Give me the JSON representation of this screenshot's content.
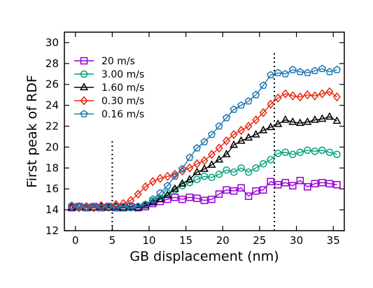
{
  "chart_data": {
    "type": "line",
    "title": "",
    "xlabel": "GB displacement (nm)",
    "ylabel": "First peak of RDF",
    "xlim": [
      -1.5,
      36.5
    ],
    "ylim": [
      12,
      31
    ],
    "xticks": [
      0,
      5,
      10,
      15,
      20,
      25,
      30,
      35
    ],
    "yticks": [
      12,
      14,
      16,
      18,
      20,
      22,
      24,
      26,
      28,
      30
    ],
    "grid": false,
    "legend_position": "top-left",
    "vlines": [
      {
        "x": 5,
        "y_from": 12,
        "y_to": 20.8
      },
      {
        "x": 27,
        "y_from": 12,
        "y_to": 29.2
      }
    ],
    "series": [
      {
        "name": "20 m/s",
        "color": "#9400d3",
        "marker": "square",
        "x": [
          -0.5,
          0.5,
          1.5,
          2.5,
          3.5,
          4.5,
          5.5,
          6.5,
          7.5,
          8.5,
          9.5,
          10.5,
          11.5,
          12.5,
          13.5,
          14.5,
          15.5,
          16.5,
          17.5,
          18.5,
          19.5,
          20.5,
          21.5,
          22.5,
          23.5,
          24.5,
          25.5,
          26.5,
          27.5,
          28.5,
          29.5,
          30.5,
          31.5,
          32.5,
          33.5,
          34.5,
          35.5
        ],
        "y": [
          14.2,
          14.3,
          14.2,
          14.3,
          14.2,
          14.3,
          14.2,
          14.2,
          14.3,
          14.2,
          14.3,
          14.6,
          14.8,
          15.0,
          15.2,
          15.0,
          15.2,
          15.1,
          14.9,
          15.0,
          15.5,
          15.9,
          15.8,
          16.1,
          15.3,
          15.8,
          15.9,
          16.7,
          16.4,
          16.6,
          16.3,
          16.8,
          16.2,
          16.5,
          16.6,
          16.5,
          16.4
        ]
      },
      {
        "name": "3.00 m/s",
        "color": "#00a07a",
        "marker": "circle",
        "x": [
          -0.5,
          0.5,
          1.5,
          2.5,
          3.5,
          4.5,
          5.5,
          6.5,
          7.5,
          8.5,
          9.5,
          10.5,
          11.5,
          12.5,
          13.5,
          14.5,
          15.5,
          16.5,
          17.5,
          18.5,
          19.5,
          20.5,
          21.5,
          22.5,
          23.5,
          24.5,
          25.5,
          26.5,
          27.5,
          28.5,
          29.5,
          30.5,
          31.5,
          32.5,
          33.5,
          34.5,
          35.5
        ],
        "y": [
          14.3,
          14.2,
          14.3,
          14.2,
          14.3,
          14.2,
          14.3,
          14.2,
          14.2,
          14.3,
          14.5,
          14.8,
          15.1,
          15.6,
          15.9,
          16.3,
          16.6,
          16.9,
          17.2,
          17.1,
          17.4,
          17.8,
          17.6,
          18.0,
          17.6,
          18.0,
          18.4,
          18.8,
          19.4,
          19.5,
          19.3,
          19.5,
          19.7,
          19.6,
          19.7,
          19.5,
          19.3
        ]
      },
      {
        "name": "1.60 m/s",
        "color": "#000000",
        "marker": "triangle",
        "x": [
          -0.5,
          0.5,
          1.5,
          2.5,
          3.5,
          4.5,
          5.5,
          6.5,
          7.5,
          8.5,
          9.5,
          10.5,
          11.5,
          12.5,
          13.5,
          14.5,
          15.5,
          16.5,
          17.5,
          18.5,
          19.5,
          20.5,
          21.5,
          22.5,
          23.5,
          24.5,
          25.5,
          26.5,
          27.5,
          28.5,
          29.5,
          30.5,
          31.5,
          32.5,
          33.5,
          34.5,
          35.5
        ],
        "y": [
          14.2,
          14.3,
          14.2,
          14.2,
          14.3,
          14.2,
          14.3,
          14.2,
          14.3,
          14.2,
          14.4,
          14.7,
          15.0,
          15.4,
          16.0,
          16.5,
          16.9,
          17.6,
          17.9,
          18.3,
          18.8,
          19.3,
          20.2,
          20.6,
          20.9,
          21.2,
          21.6,
          21.9,
          22.2,
          22.6,
          22.4,
          22.3,
          22.4,
          22.6,
          22.7,
          22.9,
          22.5
        ]
      },
      {
        "name": "0.30 m/s",
        "color": "#e8250e",
        "marker": "diamond",
        "x": [
          -0.5,
          0.5,
          1.5,
          2.5,
          3.5,
          4.5,
          5.5,
          6.5,
          7.5,
          8.5,
          9.5,
          10.5,
          11.5,
          12.5,
          13.5,
          14.5,
          15.5,
          16.5,
          17.5,
          18.5,
          19.5,
          20.5,
          21.5,
          22.5,
          23.5,
          24.5,
          25.5,
          26.5,
          27.5,
          28.5,
          29.5,
          30.5,
          31.5,
          32.5,
          33.5,
          34.5,
          35.5
        ],
        "y": [
          14.3,
          14.2,
          14.3,
          14.2,
          14.4,
          14.3,
          14.5,
          14.6,
          14.9,
          15.5,
          16.2,
          16.7,
          17.0,
          17.2,
          17.4,
          17.7,
          18.0,
          18.4,
          18.7,
          19.3,
          19.9,
          20.6,
          21.2,
          21.6,
          22.0,
          22.6,
          23.3,
          24.1,
          24.7,
          25.1,
          24.9,
          24.8,
          25.0,
          24.9,
          25.1,
          25.3,
          24.8
        ]
      },
      {
        "name": "0.16 m/s",
        "color": "#1f78b4",
        "marker": "pentagon",
        "x": [
          -0.5,
          0.5,
          1.5,
          2.5,
          3.5,
          4.5,
          5.5,
          6.5,
          7.5,
          8.5,
          9.5,
          10.5,
          11.5,
          12.5,
          13.5,
          14.5,
          15.5,
          16.5,
          17.5,
          18.5,
          19.5,
          20.5,
          21.5,
          22.5,
          23.5,
          24.5,
          25.5,
          26.5,
          27.5,
          28.5,
          29.5,
          30.5,
          31.5,
          32.5,
          33.5,
          34.5,
          35.5
        ],
        "y": [
          14.4,
          14.3,
          14.2,
          14.3,
          14.2,
          14.3,
          14.2,
          14.3,
          14.2,
          14.3,
          14.5,
          15.0,
          15.6,
          16.3,
          17.2,
          17.9,
          19.0,
          19.9,
          20.5,
          21.2,
          22.0,
          22.8,
          23.6,
          24.0,
          24.4,
          25.0,
          25.9,
          26.9,
          27.1,
          27.0,
          27.4,
          27.2,
          27.1,
          27.3,
          27.5,
          27.2,
          27.4
        ]
      }
    ]
  }
}
